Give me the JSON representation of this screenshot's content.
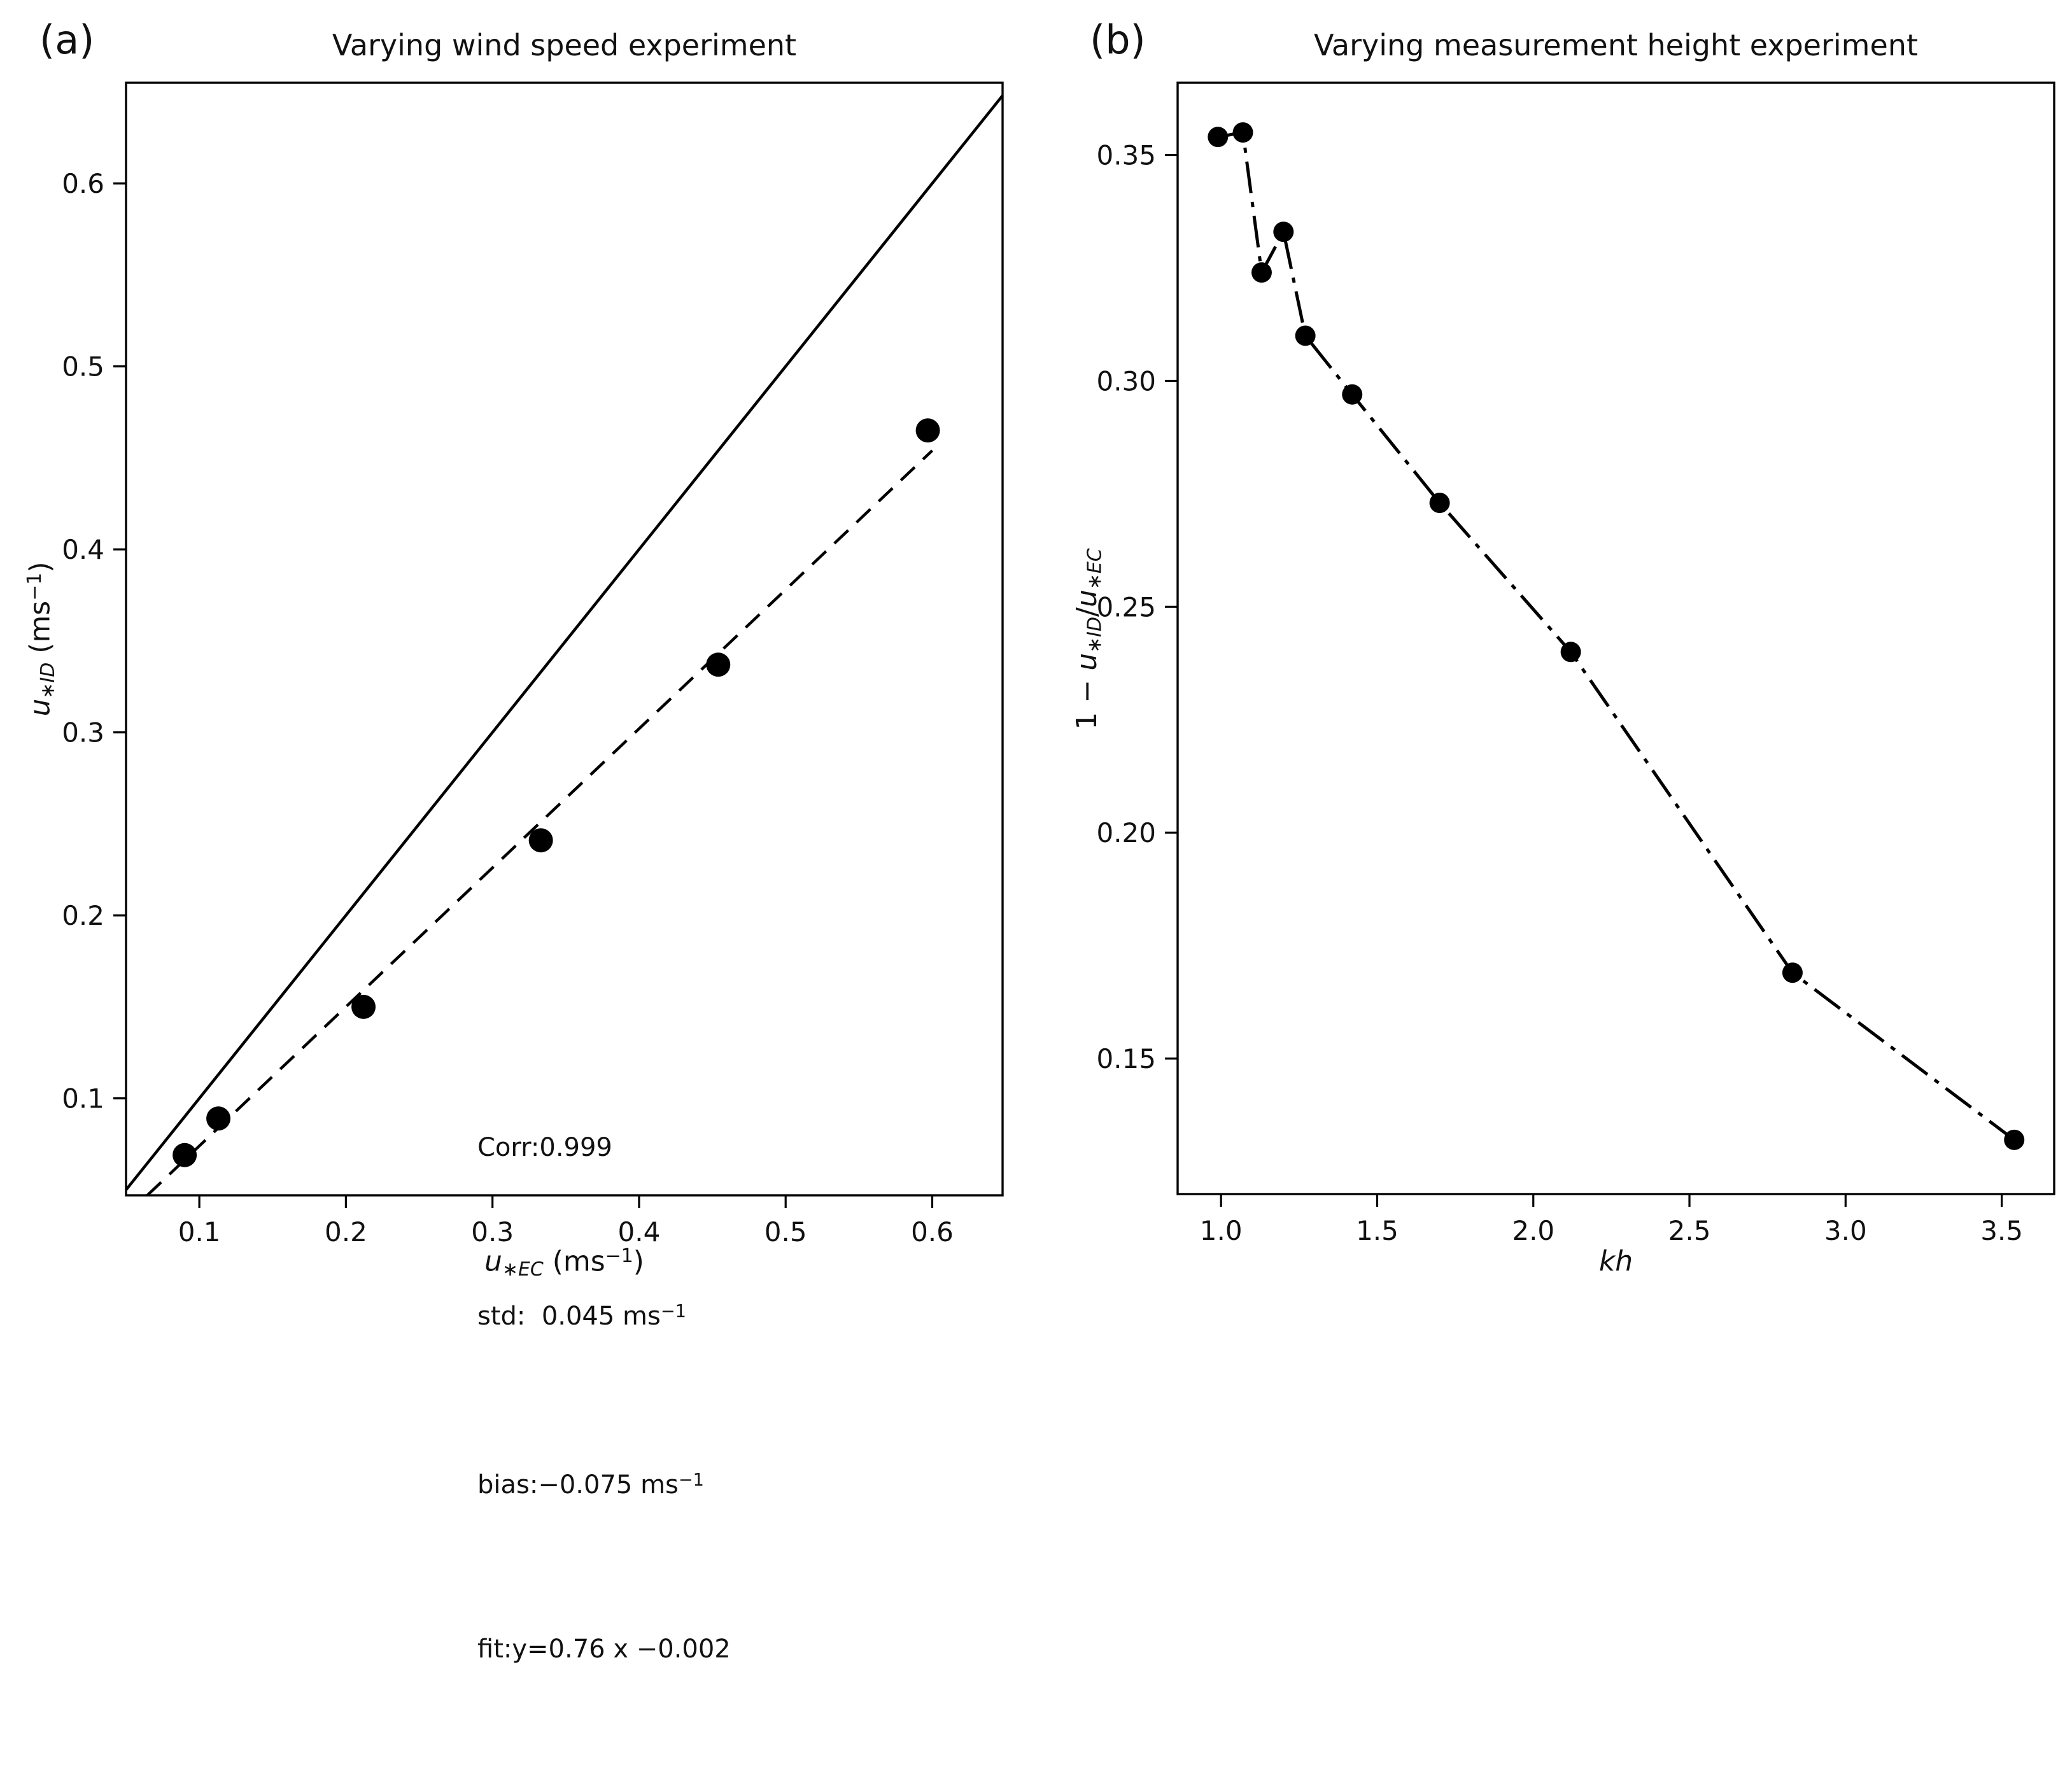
{
  "figure": {
    "panels": [
      {
        "corner_label": "(a)",
        "xlabel": {
          "var": "u",
          "sub": "∗EC",
          "unit_open": " (ms",
          "sup": "−1",
          "unit_close": ")"
        },
        "ylabel": {
          "var": "u",
          "sub": "∗ID",
          "unit_open": " (ms",
          "sup": "−1",
          "unit_close": ")"
        },
        "annotation": {
          "lines": [
            {
              "text": "Corr:0.999"
            },
            {
              "text": "std:  0.045 ms",
              "sup": "−1"
            },
            {
              "text": "bias:−0.075 ms",
              "sup": "−1"
            },
            {
              "text": "fit:y=0.76 x −0.002"
            }
          ]
        }
      },
      {
        "corner_label": "(b)",
        "xlabel": {
          "italic": "kh"
        },
        "ylabel": {
          "pre": "1 − ",
          "var1": "u",
          "sub1": "∗ID",
          "slash": "/",
          "var2": "u",
          "sub2": "∗EC"
        }
      }
    ]
  },
  "chart_data": [
    {
      "type": "scatter",
      "title": "Varying wind speed experiment",
      "xlabel": "u_*EC (ms^-1)",
      "ylabel": "u_*ID (ms^-1)",
      "xlim": [
        0.05,
        0.648
      ],
      "ylim": [
        0.047,
        0.655
      ],
      "grid": false,
      "xticks": {
        "values": [
          0.1,
          0.2,
          0.3,
          0.4,
          0.5,
          0.6
        ],
        "labels": [
          "0.1",
          "0.2",
          "0.3",
          "0.4",
          "0.5",
          "0.6"
        ]
      },
      "yticks": {
        "values": [
          0.1,
          0.2,
          0.3,
          0.4,
          0.5,
          0.6
        ],
        "labels": [
          "0.1",
          "0.2",
          "0.3",
          "0.4",
          "0.5",
          "0.6"
        ]
      },
      "points": {
        "x": [
          0.09,
          0.113,
          0.212,
          0.333,
          0.454,
          0.597
        ],
        "y": [
          0.069,
          0.089,
          0.15,
          0.241,
          0.337,
          0.465
        ]
      },
      "lines": [
        {
          "name": "identity-line",
          "style": "solid",
          "points": [
            [
              0.05,
              0.05
            ],
            [
              0.648,
              0.648
            ]
          ]
        },
        {
          "name": "fit-line",
          "style": "dashed",
          "slope": 0.76,
          "intercept": -0.002,
          "points": [
            [
              0.0645,
              0.047
            ],
            [
              0.6,
              0.454
            ]
          ]
        }
      ],
      "stats": {
        "corr": 0.999,
        "std": 0.045,
        "bias": -0.075,
        "fit_slope": 0.76,
        "fit_intercept": -0.002
      }
    },
    {
      "type": "line",
      "title": "Varying measurement height experiment",
      "xlabel": "kh",
      "ylabel": "1 - u_*ID/u_*EC",
      "xlim": [
        0.861,
        3.668
      ],
      "ylim": [
        0.12,
        0.366
      ],
      "grid": false,
      "line_style": "dashdot",
      "xticks": {
        "values": [
          1.0,
          1.5,
          2.0,
          2.5,
          3.0,
          3.5
        ],
        "labels": [
          "1.0",
          "1.5",
          "2.0",
          "2.5",
          "3.0",
          "3.5"
        ]
      },
      "yticks": {
        "values": [
          0.15,
          0.2,
          0.25,
          0.3,
          0.35
        ],
        "labels": [
          "0.15",
          "0.20",
          "0.25",
          "0.30",
          "0.35"
        ]
      },
      "x": [
        0.99,
        1.07,
        1.13,
        1.2,
        1.27,
        1.42,
        1.7,
        2.12,
        2.83,
        3.54
      ],
      "y": [
        0.354,
        0.355,
        0.324,
        0.333,
        0.31,
        0.297,
        0.273,
        0.24,
        0.169,
        0.132
      ]
    }
  ]
}
